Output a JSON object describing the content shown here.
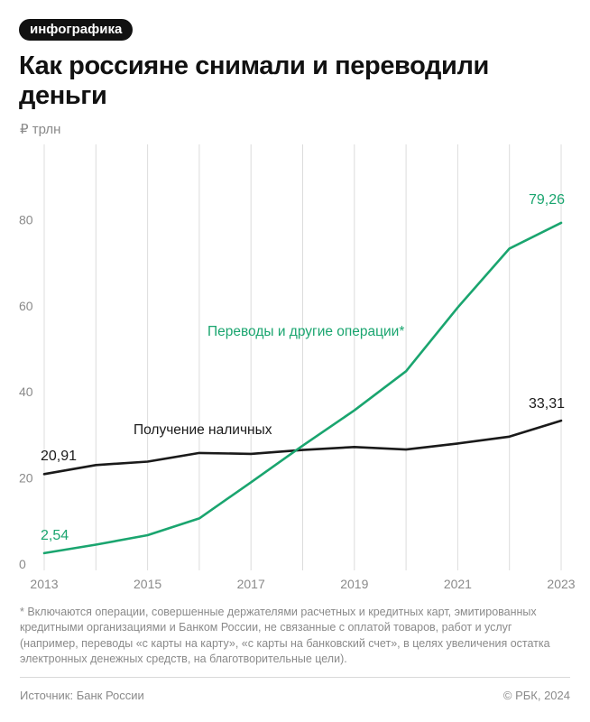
{
  "badge": "инфографика",
  "title": "Как россияне снимали и переводили деньги",
  "unit": "₽ трлн",
  "footnote": "* Включаются операции, совершенные держателями расчетных и кредитных карт, эмитированных кредитными организациями и Банком России, не связанные с оплатой товаров, работ и услуг (например, переводы «с карты на карту», «с карты на банковский счет», в целях увеличения остатка электронных денежных средств, на благотворительные цели).",
  "source": "Источник: Банк России",
  "copyright": "© РБК, 2024",
  "colors": {
    "green": "#1aa56f",
    "black": "#1a1a1a",
    "grid": "#dcdcdc",
    "axis_text": "#8a8a8a"
  },
  "chart_data": {
    "type": "line",
    "x": [
      2013,
      2014,
      2015,
      2016,
      2017,
      2018,
      2019,
      2020,
      2021,
      2022,
      2023
    ],
    "x_tick_labels": [
      "2013",
      "2015",
      "2017",
      "2019",
      "2021",
      "2023"
    ],
    "y_tick_labels": [
      "0",
      "20",
      "40",
      "60",
      "80"
    ],
    "ylim": [
      0,
      100
    ],
    "xlim": [
      2013,
      2023
    ],
    "grid": "vertical",
    "ylabel": "₽ трлн",
    "series": [
      {
        "name": "Получение наличных",
        "color": "#1a1a1a",
        "values": [
          20.91,
          23.0,
          23.8,
          25.8,
          25.6,
          26.5,
          27.2,
          26.6,
          28.0,
          29.6,
          33.31
        ],
        "start_label": "20,91",
        "end_label": "33,31"
      },
      {
        "name": "Переводы и другие операции*",
        "color": "#1aa56f",
        "values": [
          2.54,
          4.5,
          6.7,
          10.6,
          19.0,
          27.5,
          35.7,
          44.8,
          59.6,
          73.3,
          79.26
        ],
        "start_label": "2,54",
        "end_label": "79,26"
      }
    ]
  }
}
